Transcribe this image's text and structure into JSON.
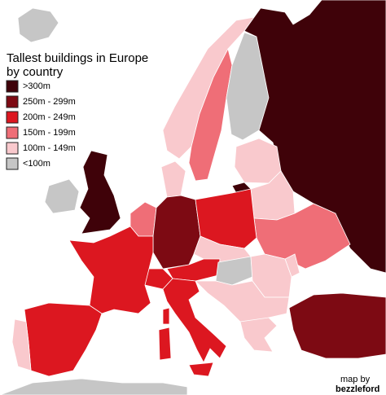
{
  "title_lines": [
    "Tallest buildings in Europe",
    "by country"
  ],
  "legend": {
    "items": [
      {
        "label": ">300m",
        "color": "#3f0209"
      },
      {
        "label": "250m - 299m",
        "color": "#7d0a13"
      },
      {
        "label": "200m - 249m",
        "color": "#dc1720"
      },
      {
        "label": "150m - 199m",
        "color": "#ef6e77"
      },
      {
        "label": "100m - 149m",
        "color": "#f9c9cd"
      },
      {
        "label": "<100m",
        "color": "#c6c6c6"
      }
    ]
  },
  "credit": {
    "line1": "map by",
    "line2": "bezzleford"
  }
}
